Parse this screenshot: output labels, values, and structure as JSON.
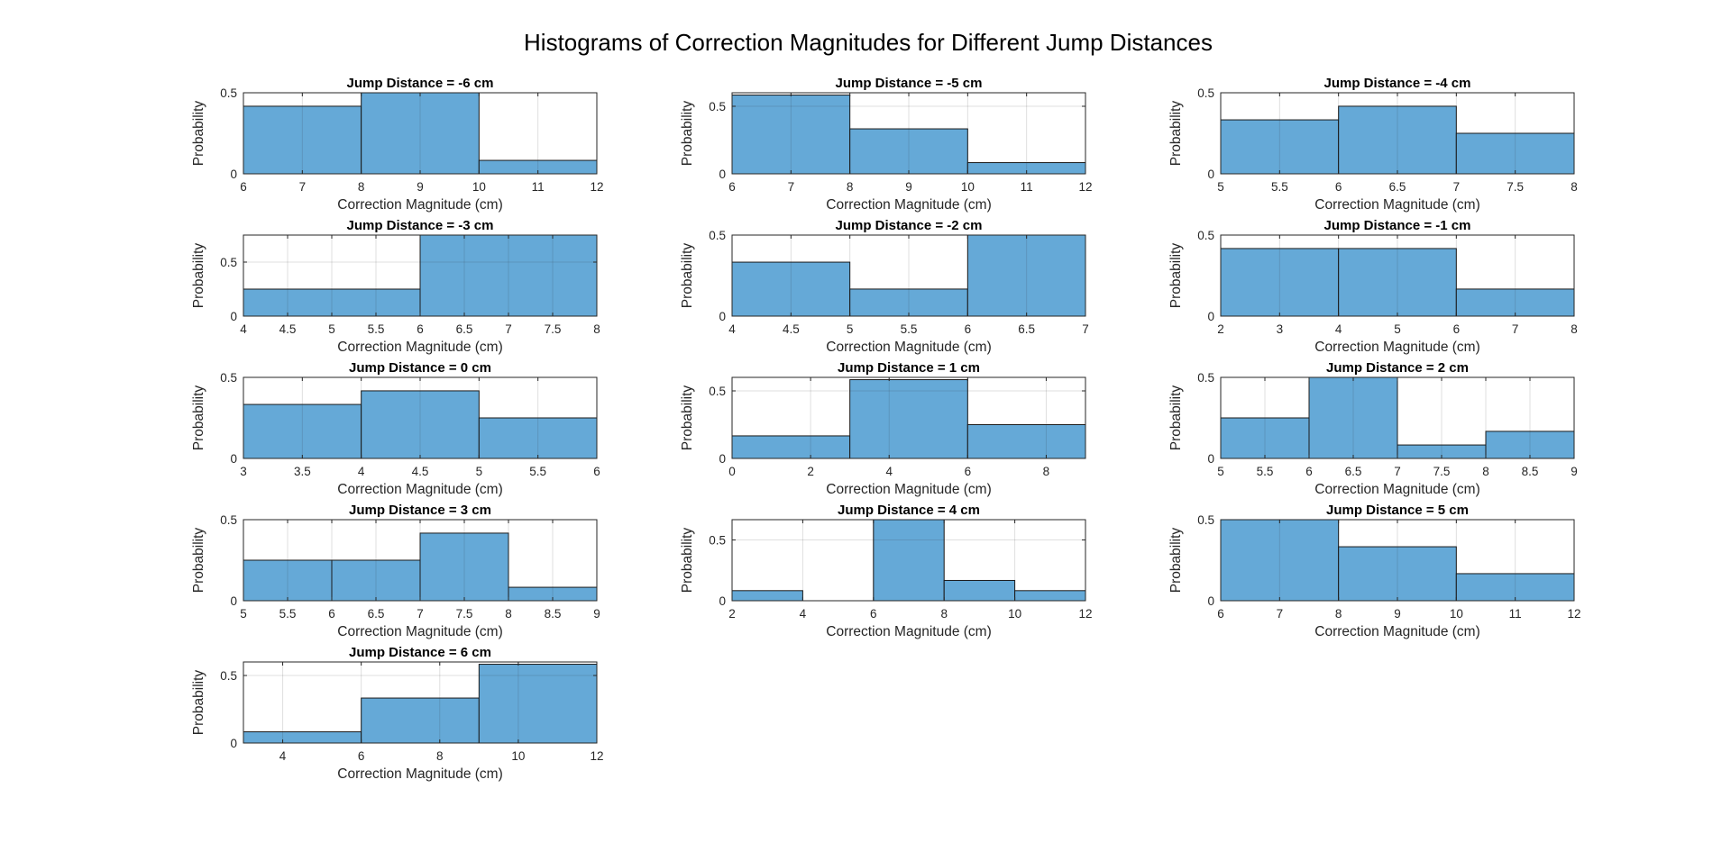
{
  "figure": {
    "title": "Histograms of Correction Magnitudes for Different Jump Distances"
  },
  "chart_data": [
    {
      "type": "bar",
      "title": "Jump Distance = -6 cm",
      "xlabel": "Correction Magnitude (cm)",
      "ylabel": "Probability",
      "bin_edges": [
        6,
        8,
        10,
        12
      ],
      "values": [
        0.417,
        0.5,
        0.083
      ],
      "xlim": [
        6,
        12
      ],
      "ylim": [
        0,
        0.5
      ],
      "xticks": [
        6,
        7,
        8,
        9,
        10,
        11,
        12
      ],
      "yticks": [
        0,
        0.5
      ],
      "grid": true,
      "color": "#65a9d7"
    },
    {
      "type": "bar",
      "title": "Jump Distance = -5 cm",
      "xlabel": "Correction Magnitude (cm)",
      "ylabel": "Probability",
      "bin_edges": [
        6,
        8,
        10,
        12
      ],
      "values": [
        0.583,
        0.333,
        0.083
      ],
      "xlim": [
        6,
        12
      ],
      "ylim": [
        0,
        0.6
      ],
      "xticks": [
        6,
        7,
        8,
        9,
        10,
        11,
        12
      ],
      "yticks": [
        0,
        0.5
      ],
      "grid": true,
      "color": "#65a9d7"
    },
    {
      "type": "bar",
      "title": "Jump Distance = -4 cm",
      "xlabel": "Correction Magnitude (cm)",
      "ylabel": "Probability",
      "bin_edges": [
        5,
        6,
        7,
        8
      ],
      "values": [
        0.333,
        0.417,
        0.25
      ],
      "xlim": [
        5,
        8
      ],
      "ylim": [
        0,
        0.5
      ],
      "xticks": [
        5,
        5.5,
        6,
        6.5,
        7,
        7.5,
        8
      ],
      "yticks": [
        0,
        0.5
      ],
      "grid": true,
      "color": "#65a9d7"
    },
    {
      "type": "bar",
      "title": "Jump Distance = -3 cm",
      "xlabel": "Correction Magnitude (cm)",
      "ylabel": "Probability",
      "bin_edges": [
        4,
        6,
        8
      ],
      "values": [
        0.25,
        0.75
      ],
      "xlim": [
        4,
        8
      ],
      "ylim": [
        0,
        0.75
      ],
      "xticks": [
        4,
        4.5,
        5,
        5.5,
        6,
        6.5,
        7,
        7.5,
        8
      ],
      "yticks": [
        0,
        0.5
      ],
      "grid": true,
      "color": "#65a9d7"
    },
    {
      "type": "bar",
      "title": "Jump Distance = -2 cm",
      "xlabel": "Correction Magnitude (cm)",
      "ylabel": "Probability",
      "bin_edges": [
        4,
        5,
        6,
        7
      ],
      "values": [
        0.333,
        0.167,
        0.5
      ],
      "xlim": [
        4,
        7
      ],
      "ylim": [
        0,
        0.5
      ],
      "xticks": [
        4,
        4.5,
        5,
        5.5,
        6,
        6.5,
        7
      ],
      "yticks": [
        0,
        0.5
      ],
      "grid": true,
      "color": "#65a9d7"
    },
    {
      "type": "bar",
      "title": "Jump Distance = -1 cm",
      "xlabel": "Correction Magnitude (cm)",
      "ylabel": "Probability",
      "bin_edges": [
        2,
        4,
        6,
        8
      ],
      "values": [
        0.417,
        0.417,
        0.167
      ],
      "xlim": [
        2,
        8
      ],
      "ylim": [
        0,
        0.5
      ],
      "xticks": [
        2,
        3,
        4,
        5,
        6,
        7,
        8
      ],
      "yticks": [
        0,
        0.5
      ],
      "grid": true,
      "color": "#65a9d7"
    },
    {
      "type": "bar",
      "title": "Jump Distance = 0 cm",
      "xlabel": "Correction Magnitude (cm)",
      "ylabel": "Probability",
      "bin_edges": [
        3,
        4,
        5,
        6
      ],
      "values": [
        0.333,
        0.417,
        0.25
      ],
      "xlim": [
        3,
        6
      ],
      "ylim": [
        0,
        0.5
      ],
      "xticks": [
        3,
        3.5,
        4,
        4.5,
        5,
        5.5,
        6
      ],
      "yticks": [
        0,
        0.5
      ],
      "grid": true,
      "color": "#65a9d7"
    },
    {
      "type": "bar",
      "title": "Jump Distance = 1 cm",
      "xlabel": "Correction Magnitude (cm)",
      "ylabel": "Probability",
      "bin_edges": [
        0,
        3,
        6,
        9
      ],
      "values": [
        0.167,
        0.583,
        0.25
      ],
      "xlim": [
        0,
        9
      ],
      "ylim": [
        0,
        0.6
      ],
      "xticks": [
        0,
        2,
        4,
        6,
        8
      ],
      "yticks": [
        0,
        0.5
      ],
      "grid": true,
      "color": "#65a9d7"
    },
    {
      "type": "bar",
      "title": "Jump Distance = 2 cm",
      "xlabel": "Correction Magnitude (cm)",
      "ylabel": "Probability",
      "bin_edges": [
        5,
        6,
        7,
        8,
        9
      ],
      "values": [
        0.25,
        0.5,
        0.083,
        0.167
      ],
      "xlim": [
        5,
        9
      ],
      "ylim": [
        0,
        0.5
      ],
      "xticks": [
        5,
        5.5,
        6,
        6.5,
        7,
        7.5,
        8,
        8.5,
        9
      ],
      "yticks": [
        0,
        0.5
      ],
      "grid": true,
      "color": "#65a9d7"
    },
    {
      "type": "bar",
      "title": "Jump Distance = 3 cm",
      "xlabel": "Correction Magnitude (cm)",
      "ylabel": "Probability",
      "bin_edges": [
        5,
        6,
        7,
        8,
        9
      ],
      "values": [
        0.25,
        0.25,
        0.417,
        0.083
      ],
      "xlim": [
        5,
        9
      ],
      "ylim": [
        0,
        0.5
      ],
      "xticks": [
        5,
        5.5,
        6,
        6.5,
        7,
        7.5,
        8,
        8.5,
        9
      ],
      "yticks": [
        0,
        0.5
      ],
      "grid": true,
      "color": "#65a9d7"
    },
    {
      "type": "bar",
      "title": "Jump Distance = 4 cm",
      "xlabel": "Correction Magnitude (cm)",
      "ylabel": "Probability",
      "bin_edges": [
        2,
        4,
        6,
        8,
        10,
        12
      ],
      "values": [
        0.083,
        0,
        0.667,
        0.167,
        0.083
      ],
      "xlim": [
        2,
        12
      ],
      "ylim": [
        0,
        0.667
      ],
      "xticks": [
        2,
        4,
        6,
        8,
        10,
        12
      ],
      "yticks": [
        0,
        0.5
      ],
      "grid": true,
      "color": "#65a9d7"
    },
    {
      "type": "bar",
      "title": "Jump Distance = 5 cm",
      "xlabel": "Correction Magnitude (cm)",
      "ylabel": "Probability",
      "bin_edges": [
        6,
        8,
        10,
        12
      ],
      "values": [
        0.5,
        0.333,
        0.167
      ],
      "xlim": [
        6,
        12
      ],
      "ylim": [
        0,
        0.5
      ],
      "xticks": [
        6,
        7,
        8,
        9,
        10,
        11,
        12
      ],
      "yticks": [
        0,
        0.5
      ],
      "grid": true,
      "color": "#65a9d7"
    },
    {
      "type": "bar",
      "title": "Jump Distance = 6 cm",
      "xlabel": "Correction Magnitude (cm)",
      "ylabel": "Probability",
      "bin_edges": [
        3,
        6,
        9,
        12
      ],
      "values": [
        0.083,
        0.333,
        0.583
      ],
      "xlim": [
        3,
        12
      ],
      "ylim": [
        0,
        0.6
      ],
      "xticks": [
        4,
        6,
        8,
        10,
        12
      ],
      "yticks": [
        0,
        0.5
      ],
      "grid": true,
      "color": "#65a9d7"
    }
  ]
}
